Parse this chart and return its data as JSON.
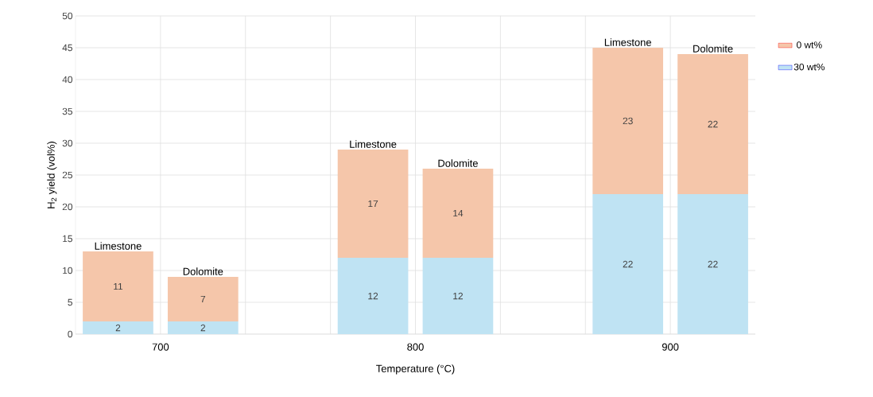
{
  "chart_data": {
    "type": "bar",
    "stacked": true,
    "xlabel": "Temperature (°C)",
    "ylabel": "H$_{2}$ yield (vol%)",
    "categories": [
      "Limestone",
      "Dolomite",
      null,
      "Limestone",
      "Dolomite",
      null,
      "Limestone",
      "Dolomite"
    ],
    "series": [
      {
        "name": "30 wt%",
        "color": "#bfe3f3",
        "values": [
          2,
          2,
          null,
          12,
          12,
          null,
          22,
          22
        ]
      },
      {
        "name": "0 wt%",
        "color": "#f5c6aa",
        "values": [
          11,
          7,
          null,
          17,
          14,
          null,
          23,
          22
        ]
      }
    ],
    "ylim": [
      0,
      50
    ],
    "yticks": [
      0,
      5,
      10,
      15,
      20,
      25,
      30,
      35,
      40,
      45,
      50
    ],
    "annotations": [
      "700",
      "800",
      "900"
    ],
    "data_labels": true,
    "grid": true,
    "legend": "right"
  }
}
